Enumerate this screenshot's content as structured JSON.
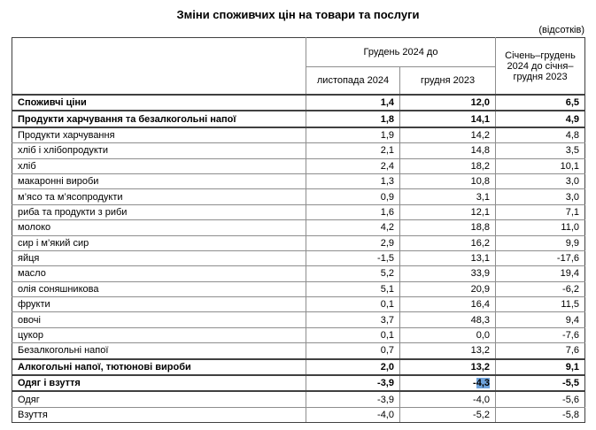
{
  "page": {
    "title": "Зміни споживчих цін на товари та послуги",
    "unit_note": "(відсотків)"
  },
  "table": {
    "header": {
      "period_group": "Грудень 2024 до",
      "col_nov_2024": "листопада 2024",
      "col_dec_2023": "грудня 2023",
      "col_jan_dec": "Січень–грудень 2024 до січня–грудня 2023"
    },
    "rows": [
      {
        "label": "Споживчі ціни",
        "bold": true,
        "indent": 0,
        "values": [
          "1,4",
          "12,0",
          "6,5"
        ]
      },
      {
        "label": "Продукти харчування та безалкогольні напої",
        "bold": true,
        "indent": 1,
        "values": [
          "1,8",
          "14,1",
          "4,9"
        ]
      },
      {
        "label": "Продукти харчування",
        "bold": false,
        "indent": 2,
        "values": [
          "1,9",
          "14,2",
          "4,8"
        ]
      },
      {
        "label": "хліб і хлібопродукти",
        "bold": false,
        "indent": 3,
        "values": [
          "2,1",
          "14,8",
          "3,5"
        ]
      },
      {
        "label": "хліб",
        "bold": false,
        "indent": 3,
        "values": [
          "2,4",
          "18,2",
          "10,1"
        ]
      },
      {
        "label": "макаронні вироби",
        "bold": false,
        "indent": 3,
        "values": [
          "1,3",
          "10,8",
          "3,0"
        ]
      },
      {
        "label": "м’ясо та м’ясопродукти",
        "bold": false,
        "indent": 3,
        "values": [
          "0,9",
          "3,1",
          "3,0"
        ]
      },
      {
        "label": "риба та продукти з риби",
        "bold": false,
        "indent": 3,
        "values": [
          "1,6",
          "12,1",
          "7,1"
        ]
      },
      {
        "label": "молоко",
        "bold": false,
        "indent": 3,
        "values": [
          "4,2",
          "18,8",
          "11,0"
        ]
      },
      {
        "label": "сир і м’який сир",
        "bold": false,
        "indent": 3,
        "values": [
          "2,9",
          "16,2",
          "9,9"
        ]
      },
      {
        "label": "яйця",
        "bold": false,
        "indent": 3,
        "values": [
          "-1,5",
          "13,1",
          "-17,6"
        ]
      },
      {
        "label": "масло",
        "bold": false,
        "indent": 3,
        "values": [
          "5,2",
          "33,9",
          "19,4"
        ]
      },
      {
        "label": "олія соняшникова",
        "bold": false,
        "indent": 3,
        "values": [
          "5,1",
          "20,9",
          "-6,2"
        ]
      },
      {
        "label": "фрукти",
        "bold": false,
        "indent": 3,
        "values": [
          "0,1",
          "16,4",
          "11,5"
        ]
      },
      {
        "label": "овочі",
        "bold": false,
        "indent": 3,
        "values": [
          "3,7",
          "48,3",
          "9,4"
        ]
      },
      {
        "label": "цукор",
        "bold": false,
        "indent": 3,
        "values": [
          "0,1",
          "0,0",
          "-7,6"
        ]
      },
      {
        "label": "Безалкогольні напої",
        "bold": false,
        "indent": 2,
        "values": [
          "0,7",
          "13,2",
          "7,6"
        ]
      },
      {
        "label": "Алкогольні напої, тютюнові вироби",
        "bold": true,
        "indent": 1,
        "values": [
          "2,0",
          "13,2",
          "9,1"
        ]
      },
      {
        "label": "Одяг і взуття",
        "bold": true,
        "indent": 1,
        "values": [
          "-3,9",
          "-4,3",
          "-5,5"
        ]
      },
      {
        "label": "Одяг",
        "bold": false,
        "indent": 3,
        "values": [
          "-3,9",
          "-4,0",
          "-5,6"
        ]
      },
      {
        "label": "Взуття",
        "bold": false,
        "indent": 3,
        "values": [
          "-4,0",
          "-5,2",
          "-5,8"
        ]
      }
    ],
    "selection": {
      "row": 18,
      "col": 1,
      "text": "4,3",
      "color": "#6fa3dc"
    }
  }
}
